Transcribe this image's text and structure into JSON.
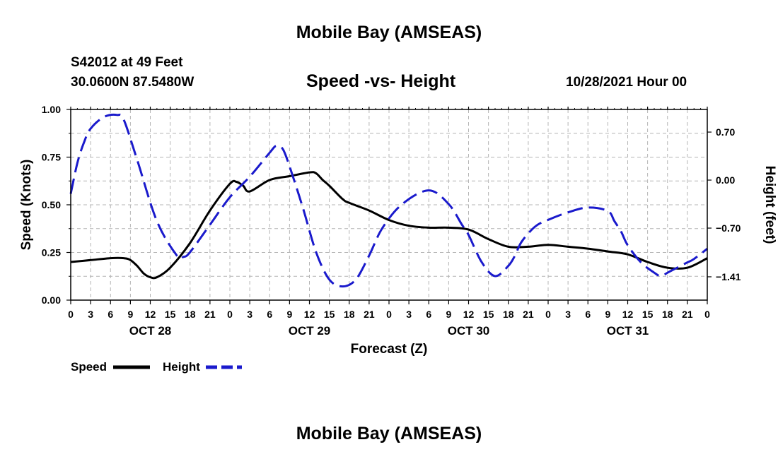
{
  "header": {
    "title": "Mobile Bay (AMSEAS)",
    "station": "S42012 at 49 Feet",
    "coords": "30.0600N  87.5480W",
    "subtitle": "Speed -vs- Height",
    "datetime": "10/28/2021 Hour 00"
  },
  "footer": {
    "title": "Mobile Bay (AMSEAS)"
  },
  "colors": {
    "speed": "#000000",
    "height": "#1a1acc",
    "grid": "#b4b4b4"
  },
  "chart_data": {
    "type": "line",
    "title": "Speed -vs- Height",
    "xlabel": "Forecast (Z)",
    "ylabel": "Speed (Knots)",
    "y2label": "Height (feet)",
    "xlim": [
      0,
      96
    ],
    "ylim": [
      0,
      1.0
    ],
    "y2lim": [
      -1.75,
      1.03
    ],
    "x_ticks": [
      0,
      3,
      6,
      9,
      12,
      15,
      18,
      21,
      24,
      27,
      30,
      33,
      36,
      39,
      42,
      45,
      48,
      51,
      54,
      57,
      60,
      63,
      66,
      69,
      72,
      75,
      78,
      81,
      84,
      87,
      90,
      93,
      96
    ],
    "x_tick_labels": [
      "0",
      "3",
      "6",
      "9",
      "12",
      "15",
      "18",
      "21",
      "0",
      "3",
      "6",
      "9",
      "12",
      "15",
      "18",
      "21",
      "0",
      "3",
      "6",
      "9",
      "12",
      "15",
      "18",
      "21",
      "0",
      "3",
      "6",
      "9",
      "12",
      "15",
      "18",
      "21",
      "0"
    ],
    "date_labels": [
      {
        "x": 12,
        "label": "OCT 28"
      },
      {
        "x": 36,
        "label": "OCT 29"
      },
      {
        "x": 60,
        "label": "OCT 30"
      },
      {
        "x": 84,
        "label": "OCT 31"
      }
    ],
    "y_ticks": [
      0,
      0.25,
      0.5,
      0.75,
      1.0
    ],
    "y_tick_labels": [
      "0.00",
      "0.25",
      "0.50",
      "0.75",
      "1.00"
    ],
    "y2_ticks": [
      0.7,
      0.0,
      -0.7,
      -1.41
    ],
    "y2_tick_labels": [
      "0.70",
      "0.00",
      "−0.70",
      "−1.41"
    ],
    "grid": true,
    "legend": {
      "position": "bottom-left"
    },
    "series": [
      {
        "name": "Speed",
        "axis": "left",
        "style": "solid",
        "x": [
          0,
          3,
          6,
          8,
          9,
          10,
          11,
          12,
          13,
          15,
          18,
          21,
          24,
          25,
          26,
          27,
          30,
          33,
          36,
          37,
          38,
          39,
          41,
          42,
          45,
          48,
          51,
          54,
          57,
          60,
          63,
          66,
          69,
          72,
          75,
          78,
          81,
          84,
          87,
          90,
          93,
          96
        ],
        "values": [
          0.2,
          0.21,
          0.22,
          0.22,
          0.21,
          0.18,
          0.14,
          0.12,
          0.12,
          0.17,
          0.3,
          0.47,
          0.61,
          0.62,
          0.6,
          0.57,
          0.63,
          0.65,
          0.67,
          0.665,
          0.63,
          0.6,
          0.53,
          0.51,
          0.47,
          0.42,
          0.39,
          0.38,
          0.38,
          0.37,
          0.32,
          0.28,
          0.28,
          0.29,
          0.28,
          0.27,
          0.255,
          0.24,
          0.2,
          0.17,
          0.17,
          0.22
        ]
      },
      {
        "name": "Height",
        "axis": "right",
        "style": "dashed",
        "x": [
          0,
          1,
          2,
          3,
          5,
          7,
          8,
          10,
          13,
          16,
          17,
          18,
          21,
          24,
          27,
          30,
          31,
          32,
          33,
          35,
          37,
          39,
          41,
          43,
          45,
          47,
          50,
          54,
          57,
          59,
          60,
          62,
          64,
          66,
          67,
          68,
          70,
          72,
          75,
          78,
          81,
          82,
          83,
          84,
          86,
          88,
          89,
          90,
          91,
          92,
          93,
          94,
          96
        ],
        "values": [
          -0.2,
          0.25,
          0.55,
          0.75,
          0.92,
          0.95,
          0.88,
          0.3,
          -0.6,
          -1.1,
          -1.12,
          -1.05,
          -0.65,
          -0.25,
          0.05,
          0.4,
          0.5,
          0.45,
          0.2,
          -0.4,
          -1.05,
          -1.45,
          -1.55,
          -1.45,
          -1.1,
          -0.7,
          -0.35,
          -0.15,
          -0.35,
          -0.65,
          -0.8,
          -1.2,
          -1.4,
          -1.25,
          -1.1,
          -0.9,
          -0.68,
          -0.58,
          -0.47,
          -0.4,
          -0.45,
          -0.6,
          -0.75,
          -0.95,
          -1.2,
          -1.35,
          -1.4,
          -1.35,
          -1.3,
          -1.25,
          -1.2,
          -1.15,
          -1.0
        ]
      }
    ]
  }
}
